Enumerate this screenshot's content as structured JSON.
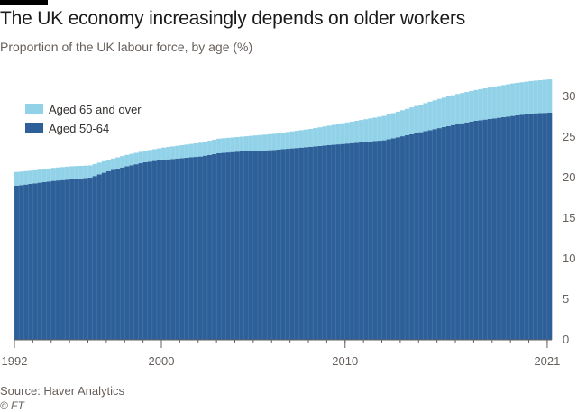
{
  "title": "The UK economy increasingly depends on older workers",
  "subtitle": "Proportion of the UK labour force, by age (%)",
  "source": "Source: Haver Analytics",
  "credit": "© FT",
  "colors": {
    "aged_65_over": "#92d2e8",
    "aged_50_64": "#2d5f98",
    "axis": "#66605c",
    "grid": "#e6e0da"
  },
  "chart_data": {
    "type": "bar",
    "stacked": true,
    "legend_position": "top-left",
    "grid": false,
    "x": [
      1992,
      1993,
      1994,
      1995,
      1996,
      1997,
      1998,
      1999,
      2000,
      2001,
      2002,
      2003,
      2004,
      2005,
      2006,
      2007,
      2008,
      2009,
      2010,
      2011,
      2012,
      2013,
      2014,
      2015,
      2016,
      2017,
      2018,
      2019,
      2020,
      2021
    ],
    "xticks": [
      "1992",
      "2000",
      "2010",
      "2021"
    ],
    "yticks": [
      "0",
      "5",
      "10",
      "15",
      "20",
      "25",
      "30"
    ],
    "ylim": [
      0,
      33
    ],
    "series": [
      {
        "name": "Aged 50-64",
        "values": [
          19.0,
          19.3,
          19.6,
          19.8,
          20.0,
          20.8,
          21.4,
          21.9,
          22.2,
          22.4,
          22.6,
          23.0,
          23.2,
          23.3,
          23.4,
          23.6,
          23.8,
          24.0,
          24.2,
          24.4,
          24.6,
          25.1,
          25.6,
          26.1,
          26.6,
          27.0,
          27.3,
          27.6,
          27.9,
          28.0
        ]
      },
      {
        "name": "Aged 65 and over",
        "values": [
          1.7,
          1.6,
          1.6,
          1.6,
          1.5,
          1.4,
          1.4,
          1.4,
          1.5,
          1.6,
          1.7,
          1.8,
          1.8,
          1.9,
          2.0,
          2.1,
          2.2,
          2.4,
          2.6,
          2.8,
          3.0,
          3.2,
          3.4,
          3.6,
          3.7,
          3.8,
          3.9,
          4.0,
          4.0,
          4.1
        ]
      }
    ]
  }
}
